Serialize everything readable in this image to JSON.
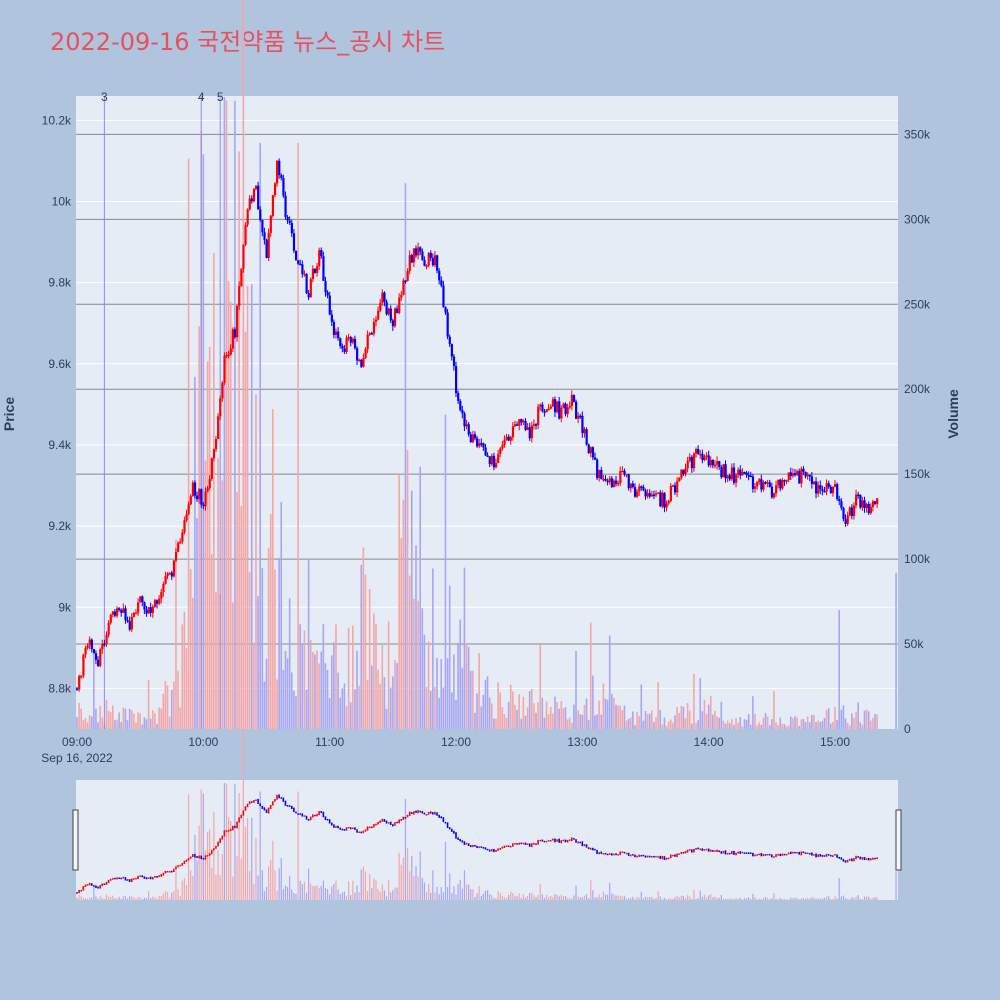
{
  "title": "2022-09-16 국전약품 뉴스_공시 차트",
  "colors": {
    "background": "#b0c4de",
    "plot_bg": "#e5ecf6",
    "title": "#e8505b",
    "up": "#ff0000",
    "down": "#0000ff",
    "up_volume": "#f4a6a6",
    "down_volume": "#a6a6f4",
    "hline": "#888888",
    "marker_line": "#8888ff"
  },
  "chart_data": {
    "type": "candlestick",
    "title": "2022-09-16 국전약품 뉴스_공시 차트",
    "x_axis": {
      "ticks": [
        "09:00",
        "10:00",
        "11:00",
        "12:00",
        "13:00",
        "14:00",
        "15:00"
      ],
      "date_label": "Sep 16, 2022",
      "range": [
        "09:00",
        "15:30"
      ]
    },
    "y_axis_price": {
      "label": "Price",
      "range": [
        8700,
        10260
      ],
      "ticks": [
        8800,
        9000,
        9200,
        9400,
        9600,
        9800,
        10000,
        10200
      ],
      "tick_labels": [
        "8.8k",
        "9k",
        "9.2k",
        "9.4k",
        "9.6k",
        "9.8k",
        "10k",
        "10.2k"
      ]
    },
    "y_axis_volume": {
      "label": "Volume",
      "range": [
        0,
        372000
      ],
      "ticks": [
        0,
        50000,
        100000,
        150000,
        200000,
        250000,
        300000,
        350000
      ],
      "tick_labels": [
        "0",
        "50k",
        "100k",
        "150k",
        "200k",
        "250k",
        "300k",
        "350k"
      ]
    },
    "volume_gridlines": [
      50000,
      100000,
      150000,
      200000,
      250000,
      300000,
      350000
    ],
    "news_markers": [
      {
        "label": "3",
        "time": "09:13"
      },
      {
        "label": "4",
        "time": "09:59"
      },
      {
        "label": "5",
        "time": "10:08"
      }
    ],
    "price_anchors": [
      [
        "09:00",
        8800
      ],
      [
        "09:05",
        8920
      ],
      [
        "09:10",
        8870
      ],
      [
        "09:15",
        8970
      ],
      [
        "09:20",
        9010
      ],
      [
        "09:25",
        8960
      ],
      [
        "09:30",
        9010
      ],
      [
        "09:35",
        9000
      ],
      [
        "09:40",
        9040
      ],
      [
        "09:45",
        9090
      ],
      [
        "09:50",
        9190
      ],
      [
        "09:55",
        9300
      ],
      [
        "10:00",
        9260
      ],
      [
        "10:05",
        9380
      ],
      [
        "10:10",
        9610
      ],
      [
        "10:15",
        9680
      ],
      [
        "10:20",
        9960
      ],
      [
        "10:25",
        10030
      ],
      [
        "10:30",
        9880
      ],
      [
        "10:35",
        10100
      ],
      [
        "10:40",
        9950
      ],
      [
        "10:45",
        9850
      ],
      [
        "10:50",
        9780
      ],
      [
        "10:55",
        9880
      ],
      [
        "11:00",
        9720
      ],
      [
        "11:05",
        9640
      ],
      [
        "11:10",
        9660
      ],
      [
        "11:15",
        9600
      ],
      [
        "11:20",
        9690
      ],
      [
        "11:25",
        9760
      ],
      [
        "11:30",
        9700
      ],
      [
        "11:35",
        9790
      ],
      [
        "11:40",
        9890
      ],
      [
        "11:45",
        9860
      ],
      [
        "11:50",
        9860
      ],
      [
        "11:55",
        9720
      ],
      [
        "12:00",
        9540
      ],
      [
        "12:05",
        9440
      ],
      [
        "12:10",
        9400
      ],
      [
        "12:15",
        9370
      ],
      [
        "12:20",
        9360
      ],
      [
        "12:25",
        9430
      ],
      [
        "12:30",
        9460
      ],
      [
        "12:35",
        9420
      ],
      [
        "12:40",
        9490
      ],
      [
        "12:45",
        9500
      ],
      [
        "12:50",
        9480
      ],
      [
        "12:55",
        9510
      ],
      [
        "13:00",
        9440
      ],
      [
        "13:05",
        9360
      ],
      [
        "13:10",
        9300
      ],
      [
        "13:15",
        9310
      ],
      [
        "13:20",
        9320
      ],
      [
        "13:25",
        9290
      ],
      [
        "13:30",
        9280
      ],
      [
        "13:35",
        9270
      ],
      [
        "13:40",
        9260
      ],
      [
        "13:45",
        9310
      ],
      [
        "13:50",
        9350
      ],
      [
        "13:55",
        9380
      ],
      [
        "14:00",
        9350
      ],
      [
        "14:05",
        9340
      ],
      [
        "14:10",
        9330
      ],
      [
        "14:15",
        9320
      ],
      [
        "14:20",
        9310
      ],
      [
        "14:25",
        9300
      ],
      [
        "14:30",
        9280
      ],
      [
        "14:35",
        9310
      ],
      [
        "14:40",
        9330
      ],
      [
        "14:45",
        9320
      ],
      [
        "14:50",
        9300
      ],
      [
        "14:55",
        9300
      ],
      [
        "15:00",
        9290
      ],
      [
        "15:05",
        9220
      ],
      [
        "15:10",
        9260
      ],
      [
        "15:15",
        9250
      ],
      [
        "15:20",
        9250
      ]
    ],
    "volume_anchors": [
      [
        "09:00",
        8000
      ],
      [
        "09:10",
        12000
      ],
      [
        "09:20",
        8000
      ],
      [
        "09:30",
        6000
      ],
      [
        "09:40",
        10000
      ],
      [
        "09:45",
        25000
      ],
      [
        "09:50",
        45000
      ],
      [
        "09:55",
        90000
      ],
      [
        "10:00",
        220000
      ],
      [
        "10:05",
        160000
      ],
      [
        "10:10",
        200000
      ],
      [
        "10:15",
        230000
      ],
      [
        "10:20",
        170000
      ],
      [
        "10:25",
        120000
      ],
      [
        "10:30",
        80000
      ],
      [
        "10:35",
        60000
      ],
      [
        "10:40",
        45000
      ],
      [
        "10:45",
        40000
      ],
      [
        "10:50",
        35000
      ],
      [
        "10:55",
        40000
      ],
      [
        "11:00",
        45000
      ],
      [
        "11:05",
        30000
      ],
      [
        "11:10",
        40000
      ],
      [
        "11:15",
        70000
      ],
      [
        "11:20",
        50000
      ],
      [
        "11:25",
        40000
      ],
      [
        "11:30",
        30000
      ],
      [
        "11:35",
        110000
      ],
      [
        "11:40",
        80000
      ],
      [
        "11:45",
        30000
      ],
      [
        "11:50",
        25000
      ],
      [
        "11:55",
        60000
      ],
      [
        "12:00",
        45000
      ],
      [
        "12:05",
        30000
      ],
      [
        "12:10",
        25000
      ],
      [
        "12:15",
        20000
      ],
      [
        "12:20",
        15000
      ],
      [
        "12:30",
        15000
      ],
      [
        "12:40",
        12000
      ],
      [
        "12:50",
        10000
      ],
      [
        "13:00",
        10000
      ],
      [
        "13:05",
        20000
      ],
      [
        "13:10",
        15000
      ],
      [
        "13:20",
        8000
      ],
      [
        "13:30",
        6000
      ],
      [
        "13:40",
        6000
      ],
      [
        "13:50",
        10000
      ],
      [
        "14:00",
        8000
      ],
      [
        "14:10",
        5000
      ],
      [
        "14:20",
        5000
      ],
      [
        "14:30",
        5000
      ],
      [
        "14:40",
        5000
      ],
      [
        "14:50",
        6000
      ],
      [
        "15:00",
        8000
      ],
      [
        "15:10",
        7000
      ],
      [
        "15:20",
        8000
      ]
    ],
    "volume_spikes": [
      [
        "09:59",
        352000,
        "up"
      ],
      [
        "10:10",
        372000,
        "down"
      ],
      [
        "10:17",
        340000,
        "up"
      ],
      [
        "10:27",
        345000,
        "down"
      ],
      [
        "10:45",
        345000,
        "up"
      ],
      [
        "10:50",
        100000,
        "down"
      ],
      [
        "11:33",
        150000,
        "up"
      ],
      [
        "11:35",
        135000,
        "up"
      ],
      [
        "11:55",
        185000,
        "down"
      ],
      [
        "12:04",
        95000,
        "down"
      ],
      [
        "12:40",
        50000,
        "up"
      ],
      [
        "13:13",
        55000,
        "down"
      ],
      [
        "13:56",
        30000,
        "down"
      ],
      [
        "15:02",
        70000,
        "down"
      ],
      [
        "15:29",
        92000,
        "down"
      ]
    ]
  }
}
